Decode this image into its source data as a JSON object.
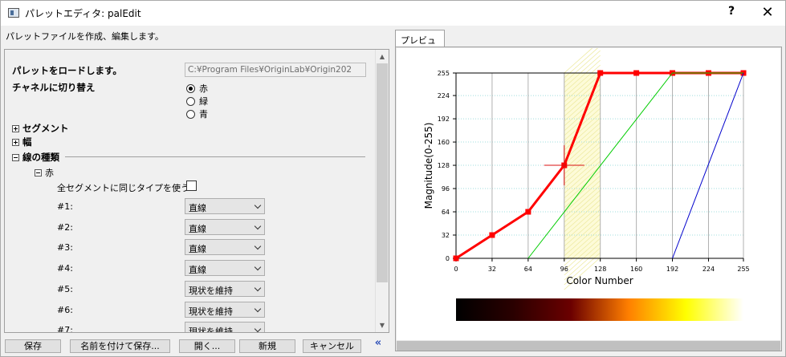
{
  "window": {
    "title": "パレットエディタ: palEdit",
    "help": "?",
    "close": "✕"
  },
  "description": "パレットファイルを作成、編集します。",
  "left": {
    "load_label": "パレットをロードします。",
    "path_value": "C:¥Program Files¥OriginLab¥Origin202",
    "channel_label": "チャネルに切り替え",
    "channels": [
      {
        "label": "赤",
        "selected": true
      },
      {
        "label": "緑",
        "selected": false
      },
      {
        "label": "青",
        "selected": false
      }
    ],
    "segment_label": "セグメント",
    "width_label": "幅",
    "linetype_label": "線の種類",
    "red_node_label": "赤",
    "same_type_label": "全セグメントに同じタイプを使う",
    "same_type_checked": false,
    "segments": [
      {
        "label": "#1:",
        "value": "直線"
      },
      {
        "label": "#2:",
        "value": "直線"
      },
      {
        "label": "#3:",
        "value": "直線"
      },
      {
        "label": "#4:",
        "value": "直線"
      },
      {
        "label": "#5:",
        "value": "現状を維持"
      },
      {
        "label": "#6:",
        "value": "現状を維持"
      },
      {
        "label": "#7:",
        "value": "現状を維持"
      }
    ]
  },
  "buttons": {
    "save": "保存",
    "save_as": "名前を付けて保存...",
    "open": "開く...",
    "new": "新規",
    "cancel": "キャンセル",
    "collapse": "«"
  },
  "tab_label": "プレビュー",
  "chart_data": {
    "type": "line",
    "xlabel": "Color Number",
    "ylabel": "Magnitude(0-255)",
    "xlim": [
      0,
      255
    ],
    "ylim": [
      0,
      255
    ],
    "xticks": [
      0,
      32,
      64,
      96,
      128,
      160,
      192,
      224,
      255
    ],
    "yticks": [
      0,
      32,
      64,
      96,
      128,
      160,
      192,
      224,
      255
    ],
    "highlight_range": [
      96,
      128
    ],
    "series": [
      {
        "color": "#ff0000",
        "points": [
          [
            0,
            0
          ],
          [
            32,
            32
          ],
          [
            64,
            64
          ],
          [
            96,
            128
          ],
          [
            128,
            255
          ],
          [
            160,
            255
          ],
          [
            192,
            255
          ],
          [
            224,
            255
          ],
          [
            255,
            255
          ]
        ],
        "markers": true
      },
      {
        "color": "#00cc00",
        "points": [
          [
            64,
            0
          ],
          [
            192,
            255
          ],
          [
            255,
            255
          ]
        ],
        "markers": false
      },
      {
        "color": "#0000cc",
        "points": [
          [
            192,
            0
          ],
          [
            255,
            255
          ]
        ],
        "markers": false
      }
    ],
    "cursor": [
      96,
      128
    ],
    "colorbar_stops": [
      "#000000",
      "#2a0000",
      "#6b0000",
      "#ff7f00",
      "#ffff00",
      "#ffffff"
    ]
  },
  "colors": {
    "accent": "#2d4fb8",
    "red": "#ff0000"
  }
}
